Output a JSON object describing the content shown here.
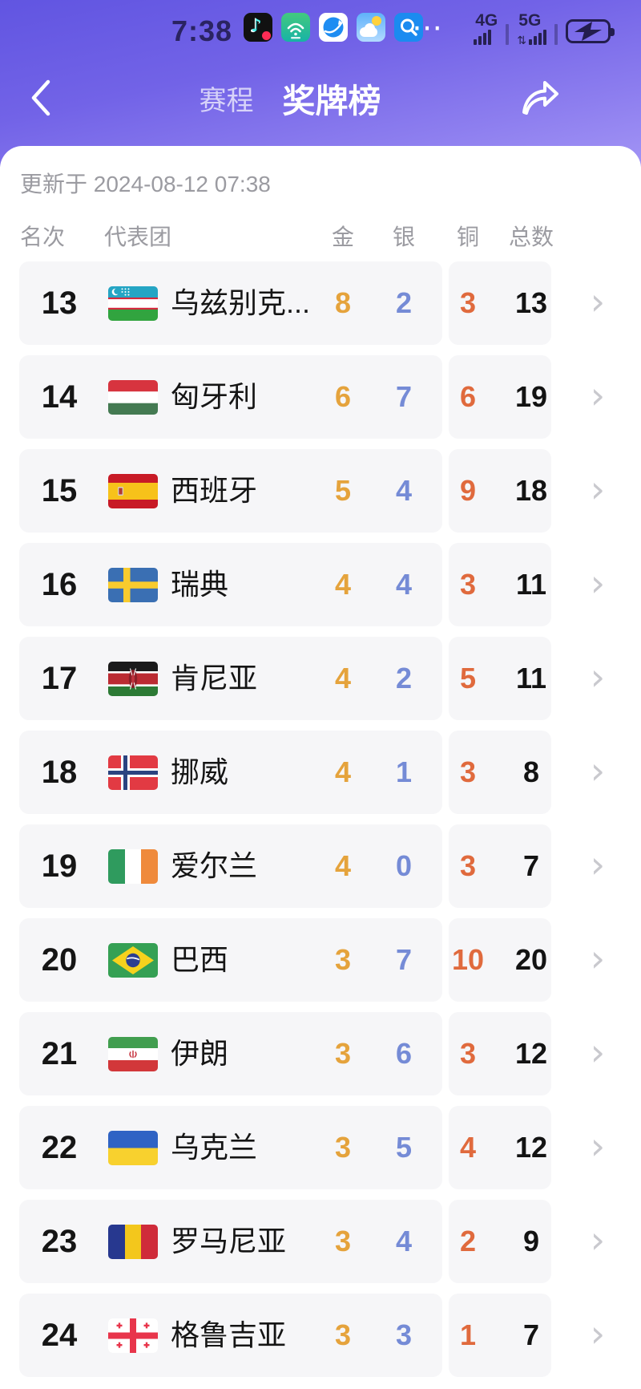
{
  "status_bar": {
    "time": "7:38",
    "app_icons": [
      {
        "name": "tiktok-app-icon"
      },
      {
        "name": "scan-app-icon"
      },
      {
        "name": "browser-app-icon"
      },
      {
        "name": "weather-app-icon"
      },
      {
        "name": "search-app-icon"
      }
    ],
    "more_dots": "⋯",
    "network_4g_label": "4G",
    "network_5g_label": "5G",
    "charging": true
  },
  "nav": {
    "back_icon": "chevron-left",
    "tabs": [
      {
        "label": "赛程",
        "active": false
      },
      {
        "label": "奖牌榜",
        "active": true
      }
    ],
    "share_icon": "share-forward-arrow"
  },
  "update_info": "更新于 2024-08-12 07:38",
  "table": {
    "columns": {
      "rank": "名次",
      "team": "代表团",
      "gold": "金",
      "silver": "银",
      "bronze": "铜",
      "total": "总数"
    },
    "rows": [
      {
        "rank": "13",
        "flag": "uz",
        "team": "乌兹别克...",
        "gold": "8",
        "silver": "2",
        "bronze": "3",
        "total": "13"
      },
      {
        "rank": "14",
        "flag": "hu",
        "team": "匈牙利",
        "gold": "6",
        "silver": "7",
        "bronze": "6",
        "total": "19"
      },
      {
        "rank": "15",
        "flag": "es",
        "team": "西班牙",
        "gold": "5",
        "silver": "4",
        "bronze": "9",
        "total": "18"
      },
      {
        "rank": "16",
        "flag": "se",
        "team": "瑞典",
        "gold": "4",
        "silver": "4",
        "bronze": "3",
        "total": "11"
      },
      {
        "rank": "17",
        "flag": "ke",
        "team": "肯尼亚",
        "gold": "4",
        "silver": "2",
        "bronze": "5",
        "total": "11"
      },
      {
        "rank": "18",
        "flag": "no",
        "team": "挪威",
        "gold": "4",
        "silver": "1",
        "bronze": "3",
        "total": "8"
      },
      {
        "rank": "19",
        "flag": "ie",
        "team": "爱尔兰",
        "gold": "4",
        "silver": "0",
        "bronze": "3",
        "total": "7"
      },
      {
        "rank": "20",
        "flag": "br",
        "team": "巴西",
        "gold": "3",
        "silver": "7",
        "bronze": "10",
        "total": "20"
      },
      {
        "rank": "21",
        "flag": "ir",
        "team": "伊朗",
        "gold": "3",
        "silver": "6",
        "bronze": "3",
        "total": "12"
      },
      {
        "rank": "22",
        "flag": "ua",
        "team": "乌克兰",
        "gold": "3",
        "silver": "5",
        "bronze": "4",
        "total": "12"
      },
      {
        "rank": "23",
        "flag": "ro",
        "team": "罗马尼亚",
        "gold": "3",
        "silver": "4",
        "bronze": "2",
        "total": "9"
      },
      {
        "rank": "24",
        "flag": "ge",
        "team": "格鲁吉亚",
        "gold": "3",
        "silver": "3",
        "bronze": "1",
        "total": "7"
      }
    ],
    "row_chevron": "›"
  },
  "colors": {
    "gold": "#e5a33c",
    "silver": "#758bd6",
    "bronze": "#e06a3d",
    "header_gradient_top": "#6155e1",
    "header_gradient_bottom": "#a294f5",
    "row_background": "#f6f6f8",
    "muted_text": "#9b9ba1"
  }
}
